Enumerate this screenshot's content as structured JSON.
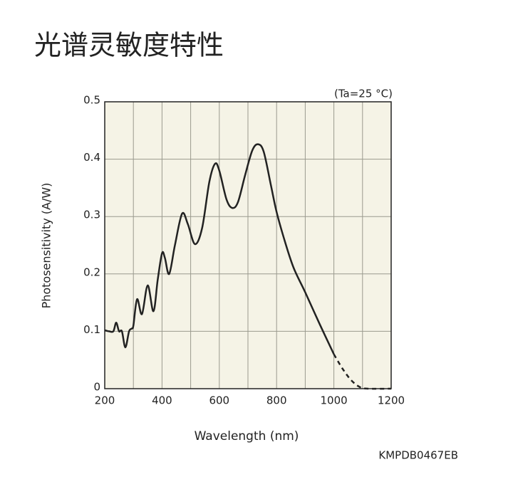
{
  "chart_data": {
    "type": "line",
    "title": "光谱灵敏度特性",
    "annotation": "(Ta=25 °C)",
    "xlabel": "Wavelength (nm)",
    "ylabel": "Photosensitivity (A/W)",
    "code": "KMPDB0467EB",
    "xlim": [
      200,
      1200
    ],
    "ylim": [
      0,
      0.5
    ],
    "xticks": [
      200,
      400,
      600,
      800,
      1000,
      1200
    ],
    "x_minor_ticks": [
      300,
      500,
      700,
      900,
      1100
    ],
    "yticks": [
      0,
      0.1,
      0.2,
      0.3,
      0.4,
      0.5
    ],
    "grid": true,
    "background": "#f5f3e6",
    "series": [
      {
        "color": "#222222",
        "dashed": false,
        "x": [
          200,
          215,
          230,
          240,
          250,
          260,
          272,
          285,
          295,
          300,
          313,
          330,
          350,
          370,
          385,
          400,
          410,
          425,
          445,
          470,
          490,
          515,
          540,
          565,
          585,
          600,
          625,
          645,
          665,
          690,
          715,
          735,
          755,
          780,
          800,
          830,
          860,
          900,
          950,
          1000
        ],
        "values": [
          0.102,
          0.1,
          0.1,
          0.115,
          0.1,
          0.1,
          0.072,
          0.1,
          0.105,
          0.11,
          0.156,
          0.13,
          0.18,
          0.135,
          0.19,
          0.236,
          0.228,
          0.2,
          0.25,
          0.305,
          0.287,
          0.252,
          0.28,
          0.36,
          0.392,
          0.38,
          0.33,
          0.315,
          0.325,
          0.372,
          0.415,
          0.426,
          0.413,
          0.355,
          0.308,
          0.255,
          0.21,
          0.168,
          0.113,
          0.06
        ]
      },
      {
        "color": "#222222",
        "dashed": true,
        "x": [
          1000,
          1030,
          1060,
          1090,
          1120,
          1200
        ],
        "values": [
          0.06,
          0.035,
          0.015,
          0.003,
          0,
          0
        ]
      }
    ]
  }
}
